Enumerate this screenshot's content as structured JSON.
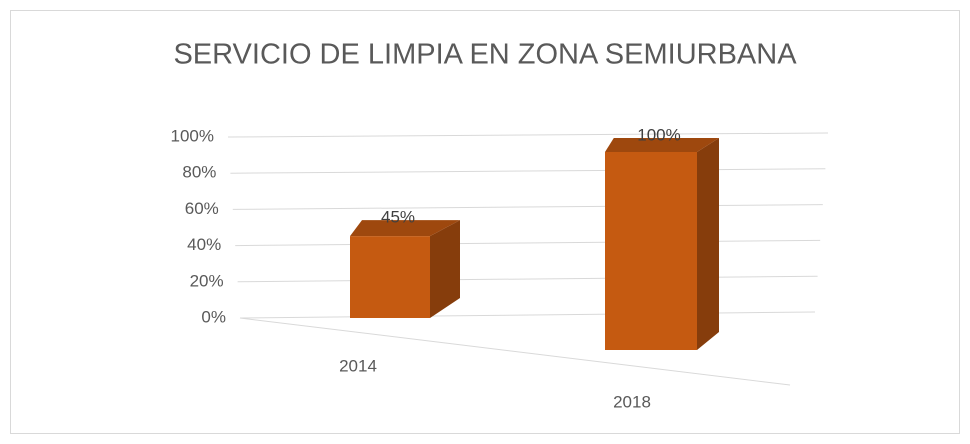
{
  "chart_data": {
    "type": "bar3d",
    "title": "SERVICIO DE LIMPIA EN ZONA SEMIURBANA",
    "categories": [
      "2014",
      "2018"
    ],
    "values": [
      45,
      100
    ],
    "value_labels": [
      "45%",
      "100%"
    ],
    "color": "#c55a11",
    "ylim": [
      0,
      100
    ],
    "yticks": [
      {
        "value": 0,
        "label": "0%"
      },
      {
        "value": 20,
        "label": "20%"
      },
      {
        "value": 40,
        "label": "40%"
      },
      {
        "value": 60,
        "label": "60%"
      },
      {
        "value": 80,
        "label": "80%"
      },
      {
        "value": 100,
        "label": "100%"
      }
    ],
    "grid": true
  }
}
